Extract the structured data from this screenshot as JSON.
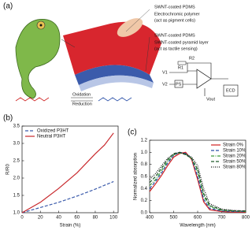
{
  "panel_a": {
    "label": "(a)",
    "callouts": [
      "SWNT-coated PDMS",
      "Electrochromic polymer",
      "(act as pigment cells)",
      "SWNT-coated PDMS",
      "SWNT-coated pyramid layer",
      "(act as tactile sensing)"
    ],
    "reaction": [
      "Oxidation",
      "Reduction"
    ],
    "circuit": {
      "r1": "R1",
      "r2": "R2",
      "v1": "V1",
      "v2": "V2",
      "vout": "Vout",
      "ps": "PS",
      "ecd": "ECD"
    }
  },
  "chart_data": [
    {
      "type": "line",
      "panel": "(b)",
      "xlabel": "Strain (%)",
      "ylabel": "R/R0",
      "x": [
        0,
        20,
        40,
        60,
        80,
        90,
        100
      ],
      "series": [
        {
          "name": "Oxidized P3HT",
          "color": "#3b5bab",
          "style": "dashed",
          "values": [
            1.0,
            1.15,
            1.3,
            1.48,
            1.68,
            1.79,
            1.9
          ]
        },
        {
          "name": "Neutral P3HT",
          "color": "#c8282c",
          "style": "solid",
          "values": [
            1.0,
            1.3,
            1.7,
            2.15,
            2.7,
            2.95,
            3.3
          ]
        }
      ],
      "xlim": [
        0,
        105
      ],
      "xticks": [
        0,
        20,
        40,
        60,
        80,
        100
      ],
      "ylim": [
        1,
        3.5
      ],
      "yticks": [
        {
          "value": 1,
          "label": "1.0"
        },
        {
          "value": 1.5,
          "label": "1.5"
        },
        {
          "value": 2,
          "label": "2.0"
        },
        {
          "value": 2.5,
          "label": "2.5"
        },
        {
          "value": 3,
          "label": "3.0"
        },
        {
          "value": 3.5,
          "label": "3.5"
        }
      ],
      "legend": "upper left"
    },
    {
      "type": "line",
      "panel": "(c)",
      "xlabel": "Wavelength (nm)",
      "ylabel": "Normalized absorption",
      "x": [
        400,
        425,
        450,
        475,
        500,
        525,
        550,
        575,
        600,
        625,
        650,
        700,
        750,
        800
      ],
      "series": [
        {
          "name": "Strain 0%",
          "color": "#d02020",
          "style": "solid",
          "values": [
            0.35,
            0.48,
            0.62,
            0.78,
            0.92,
            0.98,
            1.0,
            0.88,
            0.55,
            0.18,
            0.05,
            0.02,
            0.01,
            0.01
          ]
        },
        {
          "name": "Strain 10%",
          "color": "#2a4fa8",
          "style": "dashed",
          "values": [
            0.4,
            0.52,
            0.66,
            0.82,
            0.95,
            1.0,
            0.98,
            0.9,
            0.6,
            0.22,
            0.07,
            0.03,
            0.02,
            0.02
          ]
        },
        {
          "name": "Strain 20%",
          "color": "#3c9c3c",
          "style": "dashdot",
          "values": [
            0.45,
            0.55,
            0.7,
            0.85,
            0.96,
            0.99,
            0.97,
            0.9,
            0.68,
            0.28,
            0.1,
            0.04,
            0.03,
            0.02
          ]
        },
        {
          "name": "Strain 50%",
          "color": "#1f5a2a",
          "style": "dashed",
          "values": [
            0.5,
            0.6,
            0.74,
            0.88,
            0.98,
            1.0,
            0.96,
            0.9,
            0.72,
            0.32,
            0.12,
            0.05,
            0.03,
            0.03
          ]
        },
        {
          "name": "Strain 80%",
          "color": "#111111",
          "style": "dotted",
          "values": [
            0.55,
            0.65,
            0.78,
            0.9,
            0.97,
            1.0,
            0.97,
            0.92,
            0.78,
            0.4,
            0.15,
            0.06,
            0.04,
            0.03
          ]
        }
      ],
      "xlim": [
        400,
        800
      ],
      "xticks": [
        400,
        500,
        600,
        700,
        800
      ],
      "ylim": [
        0,
        1.2
      ],
      "yticks": [
        {
          "value": 0,
          "label": "0.0"
        },
        {
          "value": 0.2,
          "label": "0.2"
        },
        {
          "value": 0.4,
          "label": "0.4"
        },
        {
          "value": 0.6,
          "label": "0.6"
        },
        {
          "value": 0.8,
          "label": "0.8"
        },
        {
          "value": 1,
          "label": "1.0"
        },
        {
          "value": 1.2,
          "label": "1.2"
        }
      ],
      "legend": "upper right"
    }
  ]
}
